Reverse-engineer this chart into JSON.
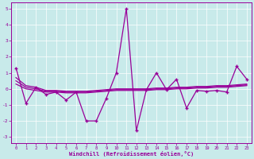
{
  "x": [
    0,
    1,
    2,
    3,
    4,
    5,
    6,
    7,
    8,
    9,
    10,
    11,
    12,
    13,
    14,
    15,
    16,
    17,
    18,
    19,
    20,
    21,
    22,
    23
  ],
  "y_main": [
    1.3,
    -0.9,
    0.1,
    -0.35,
    -0.2,
    -0.7,
    -0.2,
    -2.0,
    -2.0,
    -0.6,
    1.0,
    5.0,
    -2.6,
    -0.05,
    1.0,
    -0.05,
    0.6,
    -1.2,
    -0.1,
    -0.15,
    -0.1,
    -0.2,
    1.4,
    0.6
  ],
  "y_trend1": [
    0.7,
    0.2,
    0.1,
    -0.1,
    -0.1,
    -0.15,
    -0.15,
    -0.15,
    -0.1,
    -0.05,
    -0.0,
    -0.0,
    -0.0,
    0.0,
    0.05,
    0.05,
    0.1,
    0.1,
    0.15,
    0.15,
    0.2,
    0.2,
    0.25,
    0.3
  ],
  "y_trend2": [
    0.5,
    0.1,
    0.0,
    -0.15,
    -0.15,
    -0.2,
    -0.2,
    -0.2,
    -0.15,
    -0.1,
    -0.05,
    -0.05,
    -0.05,
    -0.05,
    0.0,
    0.0,
    0.05,
    0.05,
    0.1,
    0.1,
    0.15,
    0.15,
    0.2,
    0.25
  ],
  "y_trend3": [
    0.3,
    0.0,
    -0.1,
    -0.2,
    -0.2,
    -0.25,
    -0.25,
    -0.25,
    -0.2,
    -0.15,
    -0.1,
    -0.1,
    -0.1,
    -0.1,
    -0.05,
    -0.05,
    0.0,
    0.0,
    0.05,
    0.05,
    0.1,
    0.1,
    0.15,
    0.2
  ],
  "line_color": "#990099",
  "bg_color": "#c8eaea",
  "grid_color": "#b0d8d8",
  "xlabel": "Windchill (Refroidissement éolien,°C)",
  "ylim": [
    -3.4,
    5.4
  ],
  "xlim": [
    -0.5,
    23.5
  ],
  "yticks": [
    -3,
    -2,
    -1,
    0,
    1,
    2,
    3,
    4,
    5
  ],
  "xticks": [
    0,
    1,
    2,
    3,
    4,
    5,
    6,
    7,
    8,
    9,
    10,
    11,
    12,
    13,
    14,
    15,
    16,
    17,
    18,
    19,
    20,
    21,
    22,
    23
  ]
}
